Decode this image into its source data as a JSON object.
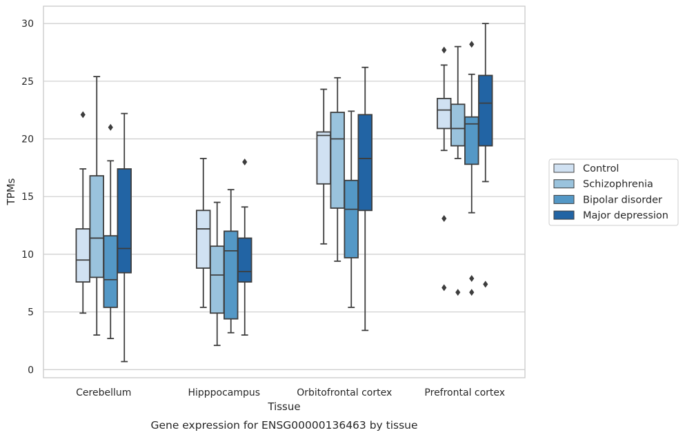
{
  "chart_data": {
    "type": "box",
    "title": "",
    "caption": "Gene expression for ENSG00000136463 by tissue",
    "xlabel": "Tissue",
    "ylabel": "TPMs",
    "ylim": [
      -0.7,
      31.5
    ],
    "yticks": [
      0,
      5,
      10,
      15,
      20,
      25,
      30
    ],
    "grid": "horizontal",
    "legend_position": "right",
    "categories": [
      "Cerebellum",
      "Hipppocampus",
      "Orbitofrontal cortex",
      "Prefrontal cortex"
    ],
    "series": [
      {
        "name": "Control",
        "color": "#d0e1f2",
        "boxes": [
          {
            "whisker_low": 4.9,
            "q1": 7.6,
            "median": 9.5,
            "q3": 12.2,
            "whisker_high": 17.4,
            "outliers": [
              22.1
            ]
          },
          {
            "whisker_low": 5.4,
            "q1": 8.8,
            "median": 12.2,
            "q3": 13.8,
            "whisker_high": 18.3,
            "outliers": []
          },
          {
            "whisker_low": 10.9,
            "q1": 16.1,
            "median": 20.3,
            "q3": 20.6,
            "whisker_high": 24.3,
            "outliers": []
          },
          {
            "whisker_low": 19.0,
            "q1": 20.9,
            "median": 22.5,
            "q3": 23.5,
            "whisker_high": 26.4,
            "outliers": [
              27.7,
              13.1,
              7.1
            ]
          }
        ]
      },
      {
        "name": "Schizophrenia",
        "color": "#9ac3dd",
        "boxes": [
          {
            "whisker_low": 3.0,
            "q1": 8.0,
            "median": 11.4,
            "q3": 16.8,
            "whisker_high": 25.4,
            "outliers": []
          },
          {
            "whisker_low": 2.1,
            "q1": 4.9,
            "median": 8.2,
            "q3": 10.7,
            "whisker_high": 14.5,
            "outliers": []
          },
          {
            "whisker_low": 9.4,
            "q1": 14.0,
            "median": 20.0,
            "q3": 22.3,
            "whisker_high": 25.3,
            "outliers": []
          },
          {
            "whisker_low": 18.3,
            "q1": 19.4,
            "median": 20.9,
            "q3": 23.0,
            "whisker_high": 28.0,
            "outliers": [
              6.7
            ]
          }
        ]
      },
      {
        "name": "Bipolar disorder",
        "color": "#5498c6",
        "boxes": [
          {
            "whisker_low": 2.7,
            "q1": 5.4,
            "median": 7.8,
            "q3": 11.6,
            "whisker_high": 18.1,
            "outliers": [
              21.0
            ]
          },
          {
            "whisker_low": 3.2,
            "q1": 4.4,
            "median": 10.3,
            "q3": 12.0,
            "whisker_high": 15.6,
            "outliers": []
          },
          {
            "whisker_low": 5.4,
            "q1": 9.7,
            "median": 13.9,
            "q3": 16.4,
            "whisker_high": 22.4,
            "outliers": []
          },
          {
            "whisker_low": 13.6,
            "q1": 17.8,
            "median": 21.3,
            "q3": 21.9,
            "whisker_high": 25.6,
            "outliers": [
              28.2,
              7.9,
              6.7
            ]
          }
        ]
      },
      {
        "name": "Major depression",
        "color": "#2264a4",
        "boxes": [
          {
            "whisker_low": 0.7,
            "q1": 8.4,
            "median": 10.5,
            "q3": 17.4,
            "whisker_high": 22.2,
            "outliers": []
          },
          {
            "whisker_low": 3.0,
            "q1": 7.6,
            "median": 8.5,
            "q3": 11.4,
            "whisker_high": 14.1,
            "outliers": [
              18.0
            ]
          },
          {
            "whisker_low": 3.4,
            "q1": 13.8,
            "median": 18.3,
            "q3": 22.1,
            "whisker_high": 26.2,
            "outliers": []
          },
          {
            "whisker_low": 16.3,
            "q1": 19.4,
            "median": 23.1,
            "q3": 25.5,
            "whisker_high": 30.0,
            "outliers": [
              7.4
            ]
          }
        ]
      }
    ]
  }
}
